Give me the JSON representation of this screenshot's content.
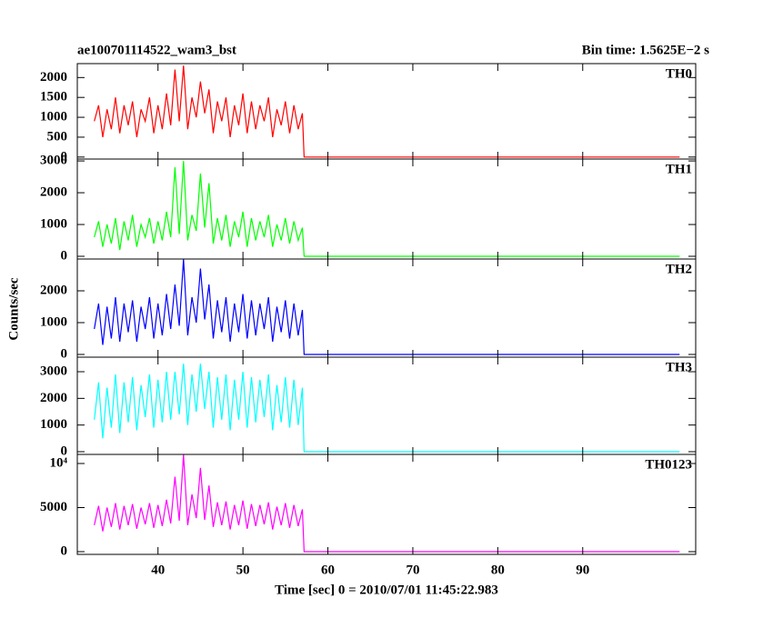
{
  "title": "ae100701114522_wam3_bst",
  "bin_time": "Bin time: 1.5625E−2 s",
  "ylabel": "Counts/sec",
  "xaxis": {
    "label": "Time [sec] 0 = 2010/07/01 11:45:22.983",
    "xlim": [
      30.5,
      103.3
    ],
    "xticks": [
      40,
      50,
      60,
      70,
      80,
      90
    ],
    "x": [
      32.5,
      33,
      33.5,
      34,
      34.5,
      35,
      35.5,
      36,
      36.5,
      37,
      37.5,
      38,
      38.5,
      39,
      39.5,
      40,
      40.5,
      41,
      41.5,
      42,
      42.5,
      43,
      43.5,
      44,
      44.5,
      45,
      45.5,
      46,
      46.5,
      47,
      47.5,
      48,
      48.5,
      49,
      49.5,
      50,
      50.5,
      51,
      51.5,
      52,
      52.5,
      53,
      53.5,
      54,
      54.5,
      55,
      55.5,
      56,
      56.5,
      57,
      57.2,
      101.4
    ]
  },
  "chart_data": [
    {
      "type": "line",
      "ylim": [
        -50,
        2350
      ],
      "yticks": [
        0,
        500,
        1000,
        1500,
        2000
      ],
      "series": [
        {
          "name": "TH0",
          "color": "#ff0000",
          "values": [
            900,
            1300,
            500,
            1200,
            700,
            1500,
            600,
            1300,
            800,
            1400,
            500,
            1200,
            900,
            1500,
            600,
            1300,
            700,
            1600,
            800,
            2200,
            900,
            2300,
            700,
            1500,
            1000,
            1900,
            1100,
            1700,
            600,
            1400,
            900,
            1500,
            500,
            1300,
            800,
            1600,
            600,
            1400,
            700,
            1300,
            900,
            1500,
            500,
            1200,
            800,
            1400,
            600,
            1300,
            700,
            1100,
            0,
            0
          ]
        }
      ]
    },
    {
      "type": "line",
      "ylim": [
        -86,
        3060
      ],
      "yticks": [
        0,
        1000,
        2000,
        3000
      ],
      "series": [
        {
          "name": "TH1",
          "color": "#00ff00",
          "values": [
            600,
            1100,
            300,
            1000,
            400,
            1200,
            200,
            1100,
            500,
            1300,
            300,
            1000,
            600,
            1200,
            400,
            1100,
            500,
            1400,
            600,
            2800,
            700,
            3000,
            500,
            1300,
            800,
            2600,
            900,
            2300,
            400,
            1200,
            500,
            1300,
            300,
            1100,
            600,
            1400,
            300,
            1200,
            500,
            1100,
            600,
            1300,
            300,
            1000,
            500,
            1200,
            400,
            1100,
            500,
            900,
            0,
            0
          ]
        }
      ]
    },
    {
      "type": "line",
      "ylim": [
        -86,
        3000
      ],
      "yticks": [
        0,
        1000,
        2000
      ],
      "series": [
        {
          "name": "TH2",
          "color": "#0000ff",
          "values": [
            800,
            1600,
            300,
            1500,
            500,
            1800,
            400,
            1600,
            700,
            1700,
            400,
            1500,
            800,
            1800,
            500,
            1600,
            600,
            1900,
            800,
            2200,
            900,
            3000,
            600,
            1800,
            1000,
            2700,
            1100,
            2200,
            500,
            1700,
            700,
            1800,
            400,
            1600,
            700,
            1900,
            500,
            1700,
            600,
            1600,
            800,
            1800,
            400,
            1500,
            700,
            1700,
            500,
            1600,
            600,
            1400,
            0,
            0
          ]
        }
      ]
    },
    {
      "type": "line",
      "ylim": [
        -102,
        3546
      ],
      "yticks": [
        0,
        1000,
        2000,
        3000
      ],
      "series": [
        {
          "name": "TH3",
          "color": "#00ffff",
          "values": [
            1200,
            2600,
            500,
            2400,
            900,
            2900,
            700,
            2600,
            1100,
            2800,
            800,
            2500,
            1300,
            2900,
            900,
            2700,
            1100,
            3000,
            1200,
            3000,
            1400,
            3300,
            1000,
            2900,
            1500,
            3300,
            1600,
            3000,
            900,
            2800,
            1200,
            2900,
            800,
            2700,
            1200,
            3000,
            900,
            2800,
            1100,
            2700,
            1300,
            2900,
            800,
            2500,
            1100,
            2800,
            900,
            2700,
            1000,
            2400,
            0,
            0
          ]
        }
      ]
    },
    {
      "type": "line",
      "ylim": [
        -310,
        11030
      ],
      "yticks": [
        0,
        5000,
        {
          "value": 10000,
          "label": "10⁴"
        }
      ],
      "series": [
        {
          "name": "TH0123",
          "color": "#ff00ff",
          "values": [
            3000,
            5200,
            2300,
            5000,
            2800,
            5500,
            2500,
            5200,
            3000,
            5400,
            2600,
            5000,
            3100,
            5500,
            2700,
            5300,
            2900,
            5900,
            3200,
            8500,
            3500,
            11000,
            3000,
            6500,
            3800,
            9500,
            3600,
            7500,
            2800,
            5600,
            3000,
            5700,
            2500,
            5300,
            3000,
            5800,
            2600,
            5400,
            2900,
            5300,
            3100,
            5600,
            2500,
            5100,
            3000,
            5500,
            2700,
            5300,
            2900,
            4800,
            0,
            0
          ]
        }
      ]
    }
  ]
}
